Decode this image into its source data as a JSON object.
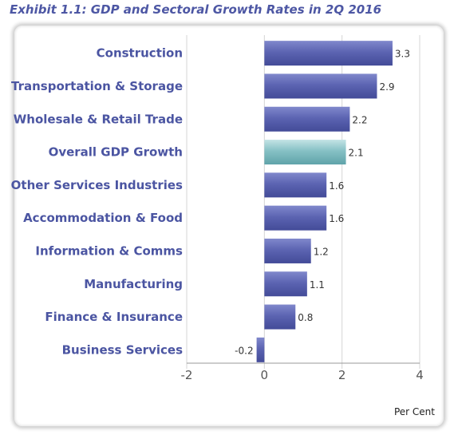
{
  "title": "Exhibit 1.1:  GDP and Sectoral Growth Rates in 2Q 2016",
  "chart_data": {
    "type": "bar",
    "orientation": "horizontal",
    "categories": [
      "Construction",
      "Transportation & Storage",
      "Wholesale & Retail Trade",
      "Overall GDP Growth",
      "Other Services Industries",
      "Accommodation & Food",
      "Information & Comms",
      "Manufacturing",
      "Finance & Insurance",
      "Business Services"
    ],
    "values": [
      3.3,
      2.9,
      2.2,
      2.1,
      1.6,
      1.6,
      1.2,
      1.1,
      0.8,
      -0.2
    ],
    "value_labels": [
      "3.3",
      "2.9",
      "2.2",
      "2.1",
      "1.6",
      "1.6",
      "1.2",
      "1.1",
      "0.8",
      "-0.2"
    ],
    "highlight_category": "Overall GDP Growth",
    "xlabel": "Per Cent",
    "xlim": [
      -2,
      4
    ],
    "xticks": [
      -2,
      0,
      2,
      4
    ],
    "grid": "vertical",
    "colors": {
      "bar": "#5a62b0",
      "highlight": "#86c1c5",
      "label": "#4b55a2",
      "grid": "#d4d4d4"
    }
  }
}
